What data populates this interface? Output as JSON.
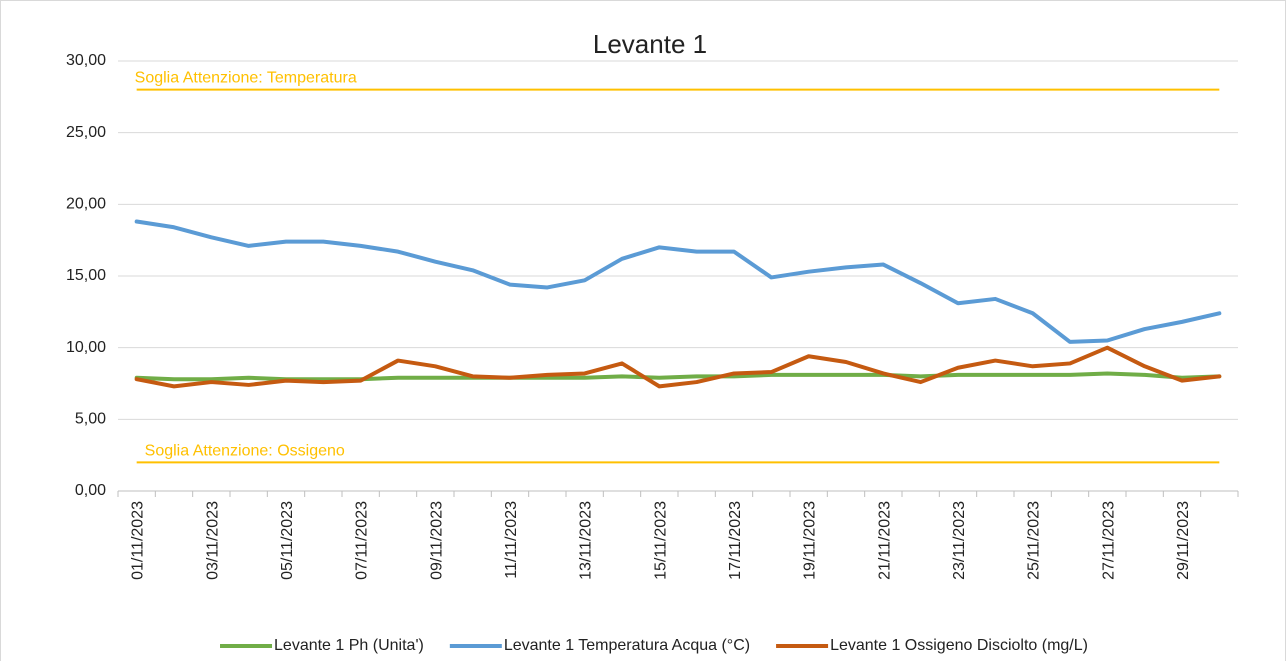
{
  "chart_data": {
    "type": "line",
    "title": "Levante 1",
    "categories": [
      "01/11/2023",
      null,
      "03/11/2023",
      null,
      "05/11/2023",
      null,
      "07/11/2023",
      null,
      "09/11/2023",
      null,
      "11/11/2023",
      null,
      "13/11/2023",
      null,
      "15/11/2023",
      null,
      "17/11/2023",
      null,
      "19/11/2023",
      null,
      "21/11/2023",
      null,
      "23/11/2023",
      null,
      "25/11/2023",
      null,
      "27/11/2023",
      null,
      "29/11/2023",
      null
    ],
    "series": [
      {
        "name": "Levante 1 Ph (Unita')",
        "color": "#70ad47",
        "values": [
          7.9,
          7.8,
          7.8,
          7.9,
          7.8,
          7.8,
          7.8,
          7.9,
          7.9,
          7.9,
          7.9,
          7.9,
          7.9,
          8.0,
          7.9,
          8.0,
          8.0,
          8.1,
          8.1,
          8.1,
          8.1,
          8.0,
          8.1,
          8.1,
          8.1,
          8.1,
          8.2,
          8.1,
          7.9,
          8.0
        ]
      },
      {
        "name": "Levante 1 Temperatura Acqua (°C)",
        "color": "#5b9bd5",
        "values": [
          18.8,
          18.4,
          17.7,
          17.1,
          17.4,
          17.4,
          17.1,
          16.7,
          16.0,
          15.4,
          14.4,
          14.2,
          14.7,
          16.2,
          17.0,
          16.7,
          16.7,
          14.9,
          15.3,
          15.6,
          15.8,
          14.5,
          13.1,
          13.4,
          12.4,
          10.4,
          10.5,
          11.3,
          11.8,
          12.4
        ]
      },
      {
        "name": "Levante 1 Ossigeno Disciolto (mg/L)",
        "color": "#c55a11",
        "values": [
          7.8,
          7.3,
          7.6,
          7.4,
          7.7,
          7.6,
          7.7,
          9.1,
          8.7,
          8.0,
          7.9,
          8.1,
          8.2,
          8.9,
          7.3,
          7.6,
          8.2,
          8.3,
          9.4,
          9.0,
          8.2,
          7.6,
          8.6,
          9.1,
          8.7,
          8.9,
          10.0,
          8.7,
          7.7,
          8.0
        ]
      }
    ],
    "thresholds": [
      {
        "label": "Soglia Attenzione: Temperatura",
        "value": 28,
        "color": "#ffc000"
      },
      {
        "label": "Soglia Attenzione: Ossigeno",
        "value": 2,
        "color": "#ffc000"
      }
    ],
    "ylim": [
      0,
      30
    ],
    "yticks": [
      {
        "value": 0,
        "label": "0,00"
      },
      {
        "value": 5,
        "label": "5,00"
      },
      {
        "value": 10,
        "label": "10,00"
      },
      {
        "value": 15,
        "label": "15,00"
      },
      {
        "value": 20,
        "label": "20,00"
      },
      {
        "value": 25,
        "label": "25,00"
      },
      {
        "value": 30,
        "label": "30,00"
      }
    ],
    "grid": true,
    "legend": "bottom"
  }
}
